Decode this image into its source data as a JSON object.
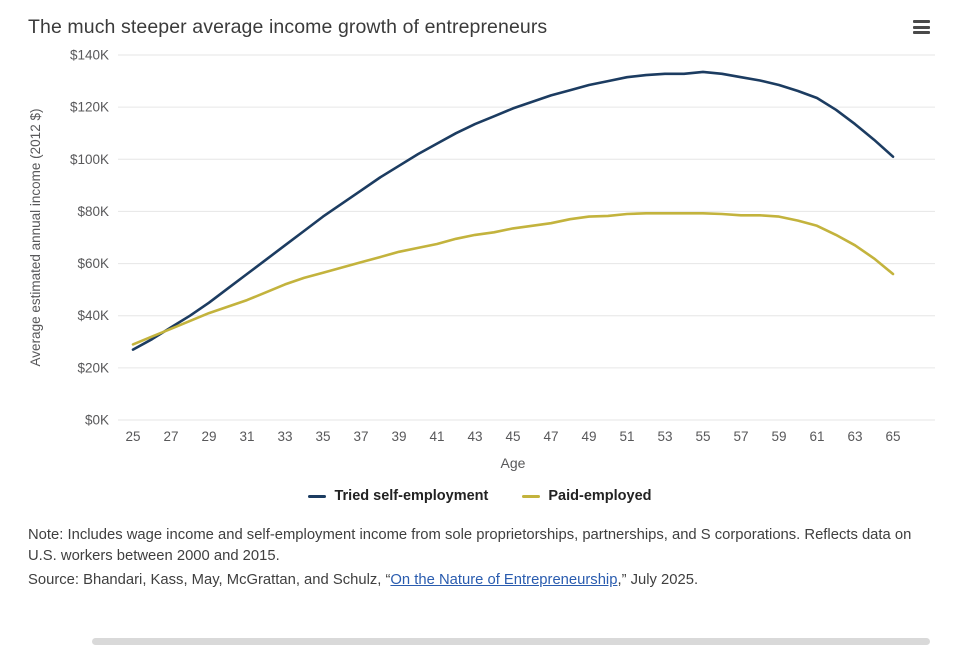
{
  "header": {
    "title": "The much steeper average income growth of entrepreneurs",
    "menu_icon": "hamburger-menu-icon"
  },
  "colors": {
    "series_self_employment": "#1c3c61",
    "series_paid_employed": "#c3b33d",
    "gridline": "#e6e6e6",
    "tick_text": "#58585a",
    "link": "#2a5caf"
  },
  "chart_data": {
    "type": "line",
    "title": "The much steeper average income growth of entrepreneurs",
    "xlabel": "Age",
    "ylabel": "Average estimated annual income (2012 $)",
    "x": [
      25,
      26,
      27,
      28,
      29,
      30,
      31,
      32,
      33,
      34,
      35,
      36,
      37,
      38,
      39,
      40,
      41,
      42,
      43,
      44,
      45,
      46,
      47,
      48,
      49,
      50,
      51,
      52,
      53,
      54,
      55,
      56,
      57,
      58,
      59,
      60,
      61,
      62,
      63,
      64,
      65
    ],
    "x_ticks": [
      25,
      27,
      29,
      31,
      33,
      35,
      37,
      39,
      41,
      43,
      45,
      47,
      49,
      51,
      53,
      55,
      57,
      59,
      61,
      63,
      65
    ],
    "ylim": [
      0,
      140000
    ],
    "y_tick_step": 20000,
    "y_tick_labels": [
      "$0K",
      "$20K",
      "$40K",
      "$60K",
      "$80K",
      "$100K",
      "$120K",
      "$140K"
    ],
    "grid": "horizontal",
    "legend_position": "bottom",
    "series": [
      {
        "name": "Tried self-employment",
        "color": "#1c3c61",
        "values": [
          27000,
          31000,
          35500,
          40000,
          45000,
          50500,
          56000,
          61500,
          67000,
          72500,
          78000,
          83000,
          88000,
          93000,
          97500,
          102000,
          106000,
          110000,
          113500,
          116500,
          119500,
          122000,
          124500,
          126500,
          128500,
          130000,
          131500,
          132300,
          132800,
          132800,
          133500,
          132800,
          131500,
          130200,
          128500,
          126200,
          123500,
          119000,
          113500,
          107500,
          101000
        ]
      },
      {
        "name": "Paid-employed",
        "color": "#c3b33d",
        "values": [
          29000,
          32000,
          35000,
          38000,
          41000,
          43500,
          46000,
          49000,
          52000,
          54500,
          56500,
          58500,
          60500,
          62500,
          64500,
          66000,
          67500,
          69500,
          71000,
          72000,
          73500,
          74500,
          75500,
          77000,
          78000,
          78300,
          79000,
          79300,
          79300,
          79300,
          79300,
          79000,
          78500,
          78500,
          78000,
          76500,
          74500,
          71000,
          67000,
          62000,
          56000
        ]
      }
    ]
  },
  "footnotes": {
    "note": "Note: Includes wage income and self-employment income from sole proprietorships, partnerships, and S corporations. Reflects data on U.S. workers between 2000 and 2015.",
    "source_prefix": "Source: Bhandari, Kass, May, McGrattan, and Schulz, “",
    "source_link": "On the Nature of Entrepreneurship",
    "source_suffix": ",” July 2025."
  }
}
